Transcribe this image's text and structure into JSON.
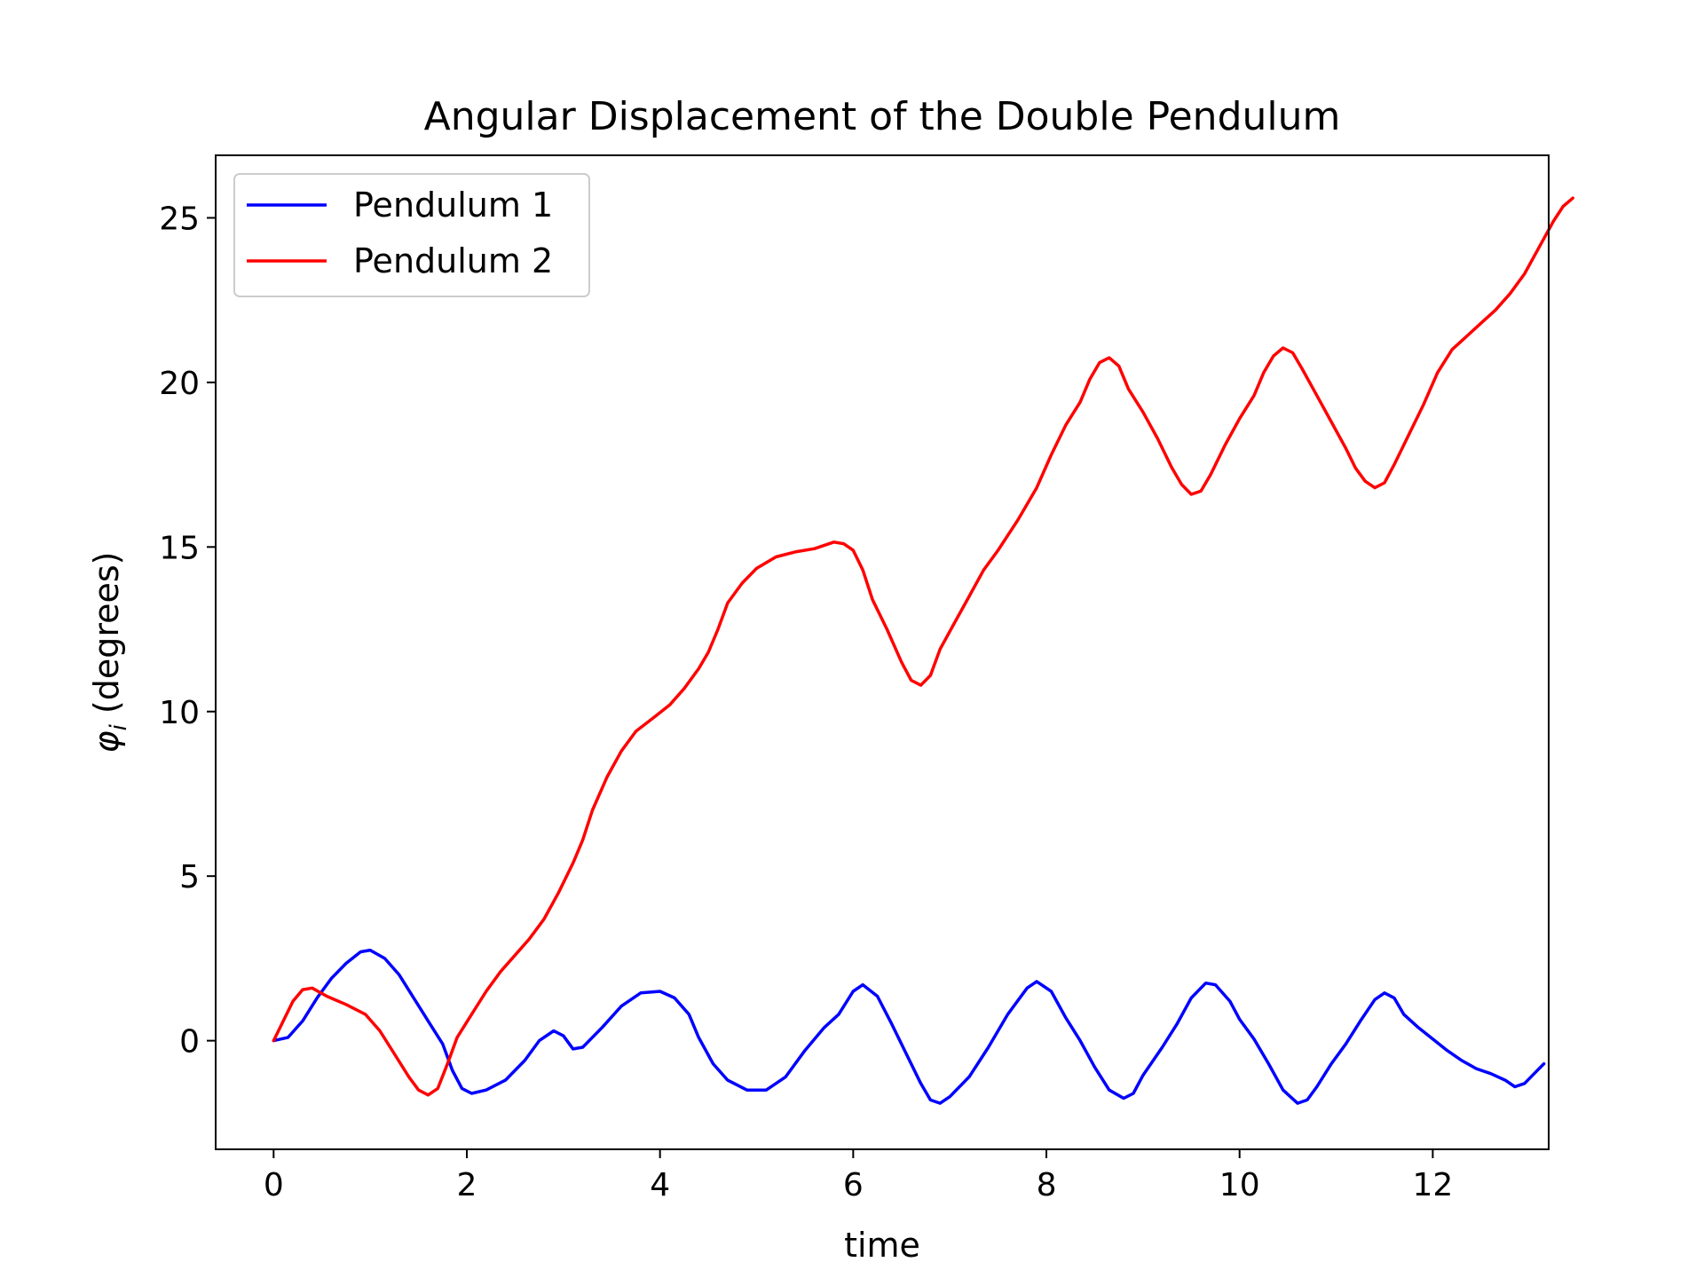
{
  "chart_data": {
    "type": "line",
    "title": "Angular Displacement of the Double Pendulum",
    "xlabel": "time",
    "ylabel_symbol": "φ",
    "ylabel_subscript": "i",
    "ylabel_rest": " (degrees)",
    "xlim": [
      -0.6,
      13.2
    ],
    "ylim": [
      -3.3,
      26.9
    ],
    "xticks": [
      0,
      2,
      4,
      6,
      8,
      10,
      12
    ],
    "yticks": [
      0,
      5,
      10,
      15,
      20,
      25
    ],
    "grid": false,
    "legend_position": "upper left",
    "series": [
      {
        "name": "Pendulum 1",
        "color": "#0000ff",
        "points": [
          [
            0,
            0
          ],
          [
            0.15,
            0.1
          ],
          [
            0.3,
            0.6
          ],
          [
            0.45,
            1.3
          ],
          [
            0.6,
            1.9
          ],
          [
            0.75,
            2.35
          ],
          [
            0.9,
            2.7
          ],
          [
            1.0,
            2.75
          ],
          [
            1.15,
            2.5
          ],
          [
            1.3,
            2.0
          ],
          [
            1.45,
            1.3
          ],
          [
            1.6,
            0.6
          ],
          [
            1.75,
            -0.1
          ],
          [
            1.85,
            -0.9
          ],
          [
            1.95,
            -1.45
          ],
          [
            2.05,
            -1.6
          ],
          [
            2.2,
            -1.5
          ],
          [
            2.4,
            -1.2
          ],
          [
            2.6,
            -0.6
          ],
          [
            2.75,
            0.0
          ],
          [
            2.9,
            0.3
          ],
          [
            3.0,
            0.15
          ],
          [
            3.1,
            -0.25
          ],
          [
            3.2,
            -0.2
          ],
          [
            3.4,
            0.4
          ],
          [
            3.6,
            1.05
          ],
          [
            3.8,
            1.45
          ],
          [
            4.0,
            1.5
          ],
          [
            4.15,
            1.3
          ],
          [
            4.3,
            0.8
          ],
          [
            4.4,
            0.1
          ],
          [
            4.55,
            -0.7
          ],
          [
            4.7,
            -1.2
          ],
          [
            4.9,
            -1.5
          ],
          [
            5.1,
            -1.5
          ],
          [
            5.3,
            -1.1
          ],
          [
            5.5,
            -0.3
          ],
          [
            5.7,
            0.4
          ],
          [
            5.85,
            0.8
          ],
          [
            6.0,
            1.5
          ],
          [
            6.1,
            1.7
          ],
          [
            6.25,
            1.35
          ],
          [
            6.4,
            0.5
          ],
          [
            6.55,
            -0.4
          ],
          [
            6.7,
            -1.3
          ],
          [
            6.8,
            -1.8
          ],
          [
            6.9,
            -1.9
          ],
          [
            7.0,
            -1.7
          ],
          [
            7.2,
            -1.1
          ],
          [
            7.4,
            -0.2
          ],
          [
            7.6,
            0.8
          ],
          [
            7.8,
            1.6
          ],
          [
            7.9,
            1.8
          ],
          [
            8.05,
            1.5
          ],
          [
            8.2,
            0.7
          ],
          [
            8.35,
            0.0
          ],
          [
            8.5,
            -0.8
          ],
          [
            8.65,
            -1.5
          ],
          [
            8.8,
            -1.75
          ],
          [
            8.9,
            -1.6
          ],
          [
            9.0,
            -1.05
          ],
          [
            9.2,
            -0.2
          ],
          [
            9.35,
            0.5
          ],
          [
            9.5,
            1.3
          ],
          [
            9.65,
            1.75
          ],
          [
            9.75,
            1.7
          ],
          [
            9.9,
            1.2
          ],
          [
            10.0,
            0.65
          ],
          [
            10.15,
            0.05
          ],
          [
            10.3,
            -0.7
          ],
          [
            10.45,
            -1.5
          ],
          [
            10.6,
            -1.9
          ],
          [
            10.7,
            -1.8
          ],
          [
            10.8,
            -1.4
          ],
          [
            10.95,
            -0.7
          ],
          [
            11.1,
            -0.1
          ],
          [
            11.25,
            0.6
          ],
          [
            11.4,
            1.25
          ],
          [
            11.5,
            1.45
          ],
          [
            11.6,
            1.3
          ],
          [
            11.7,
            0.8
          ],
          [
            11.85,
            0.4
          ],
          [
            12.0,
            0.05
          ],
          [
            12.15,
            -0.3
          ],
          [
            12.3,
            -0.6
          ],
          [
            12.45,
            -0.85
          ],
          [
            12.6,
            -1.0
          ],
          [
            12.75,
            -1.2
          ],
          [
            12.85,
            -1.4
          ],
          [
            12.95,
            -1.3
          ],
          [
            13.05,
            -1.0
          ],
          [
            13.15,
            -0.7
          ]
        ]
      },
      {
        "name": "Pendulum 2",
        "color": "#ff0000",
        "points": [
          [
            0,
            0
          ],
          [
            0.1,
            0.6
          ],
          [
            0.2,
            1.2
          ],
          [
            0.3,
            1.55
          ],
          [
            0.4,
            1.6
          ],
          [
            0.55,
            1.35
          ],
          [
            0.75,
            1.1
          ],
          [
            0.95,
            0.8
          ],
          [
            1.1,
            0.3
          ],
          [
            1.25,
            -0.4
          ],
          [
            1.4,
            -1.1
          ],
          [
            1.5,
            -1.5
          ],
          [
            1.6,
            -1.65
          ],
          [
            1.7,
            -1.45
          ],
          [
            1.8,
            -0.7
          ],
          [
            1.9,
            0.1
          ],
          [
            2.05,
            0.8
          ],
          [
            2.2,
            1.5
          ],
          [
            2.35,
            2.1
          ],
          [
            2.5,
            2.6
          ],
          [
            2.65,
            3.1
          ],
          [
            2.8,
            3.7
          ],
          [
            2.95,
            4.5
          ],
          [
            3.1,
            5.4
          ],
          [
            3.2,
            6.1
          ],
          [
            3.3,
            7.0
          ],
          [
            3.45,
            8.0
          ],
          [
            3.6,
            8.8
          ],
          [
            3.75,
            9.4
          ],
          [
            3.95,
            9.85
          ],
          [
            4.1,
            10.2
          ],
          [
            4.25,
            10.7
          ],
          [
            4.4,
            11.3
          ],
          [
            4.5,
            11.8
          ],
          [
            4.6,
            12.5
          ],
          [
            4.7,
            13.3
          ],
          [
            4.85,
            13.9
          ],
          [
            5.0,
            14.35
          ],
          [
            5.2,
            14.7
          ],
          [
            5.4,
            14.85
          ],
          [
            5.6,
            14.95
          ],
          [
            5.8,
            15.15
          ],
          [
            5.9,
            15.1
          ],
          [
            6.0,
            14.9
          ],
          [
            6.1,
            14.3
          ],
          [
            6.2,
            13.4
          ],
          [
            6.35,
            12.5
          ],
          [
            6.5,
            11.5
          ],
          [
            6.6,
            10.95
          ],
          [
            6.7,
            10.8
          ],
          [
            6.8,
            11.1
          ],
          [
            6.9,
            11.9
          ],
          [
            7.05,
            12.7
          ],
          [
            7.2,
            13.5
          ],
          [
            7.35,
            14.3
          ],
          [
            7.5,
            14.9
          ],
          [
            7.7,
            15.8
          ],
          [
            7.9,
            16.8
          ],
          [
            8.05,
            17.8
          ],
          [
            8.2,
            18.7
          ],
          [
            8.35,
            19.4
          ],
          [
            8.45,
            20.1
          ],
          [
            8.55,
            20.6
          ],
          [
            8.65,
            20.75
          ],
          [
            8.75,
            20.5
          ],
          [
            8.85,
            19.8
          ],
          [
            9.0,
            19.1
          ],
          [
            9.15,
            18.3
          ],
          [
            9.3,
            17.4
          ],
          [
            9.4,
            16.9
          ],
          [
            9.5,
            16.6
          ],
          [
            9.6,
            16.7
          ],
          [
            9.7,
            17.2
          ],
          [
            9.85,
            18.1
          ],
          [
            10.0,
            18.9
          ],
          [
            10.15,
            19.6
          ],
          [
            10.25,
            20.3
          ],
          [
            10.35,
            20.8
          ],
          [
            10.45,
            21.05
          ],
          [
            10.55,
            20.9
          ],
          [
            10.65,
            20.4
          ],
          [
            10.8,
            19.6
          ],
          [
            10.95,
            18.8
          ],
          [
            11.1,
            18.0
          ],
          [
            11.2,
            17.4
          ],
          [
            11.3,
            17.0
          ],
          [
            11.4,
            16.8
          ],
          [
            11.5,
            16.95
          ],
          [
            11.6,
            17.5
          ],
          [
            11.75,
            18.4
          ],
          [
            11.9,
            19.3
          ],
          [
            12.05,
            20.3
          ],
          [
            12.2,
            21.0
          ],
          [
            12.35,
            21.4
          ],
          [
            12.5,
            21.8
          ],
          [
            12.65,
            22.2
          ],
          [
            12.8,
            22.7
          ],
          [
            12.95,
            23.3
          ],
          [
            13.1,
            24.1
          ],
          [
            13.25,
            24.9
          ],
          [
            13.35,
            25.35
          ],
          [
            13.45,
            25.6
          ]
        ]
      }
    ]
  }
}
